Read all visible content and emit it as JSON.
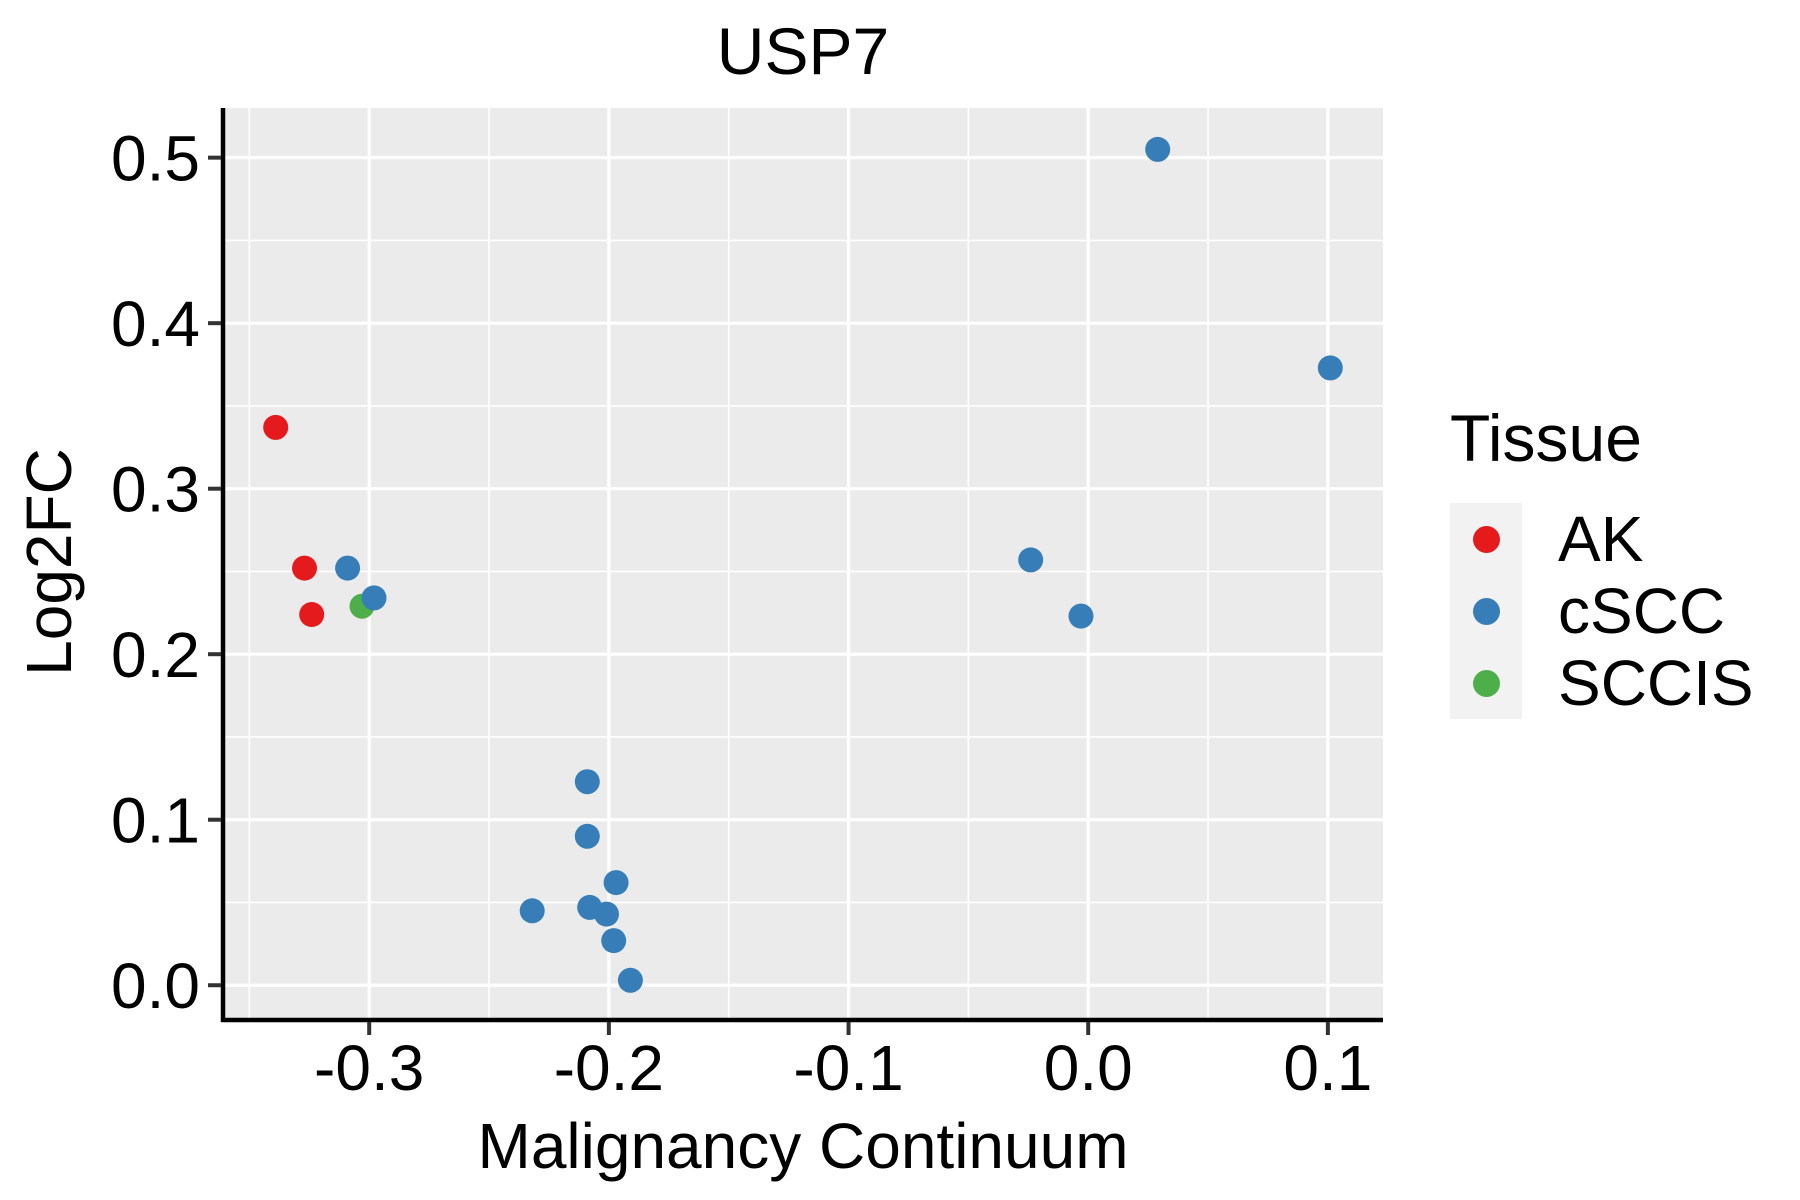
{
  "chart_data": {
    "type": "scatter",
    "title": "USP7",
    "xlabel": "Malignancy Continuum",
    "ylabel": "Log2FC",
    "xlim": [
      -0.361,
      0.123
    ],
    "ylim": [
      -0.021,
      0.53
    ],
    "x_ticks": {
      "values": [
        -0.3,
        -0.2,
        -0.1,
        0.0,
        0.1
      ],
      "labels": [
        "-0.3",
        "-0.2",
        "-0.1",
        "0.0",
        "0.1"
      ]
    },
    "y_ticks": {
      "values": [
        0.0,
        0.1,
        0.2,
        0.3,
        0.4,
        0.5
      ],
      "labels": [
        "0.0",
        "0.1",
        "0.2",
        "0.3",
        "0.4",
        "0.5"
      ]
    },
    "x_minor_ticks": [
      -0.35,
      -0.25,
      -0.15,
      -0.05,
      0.05
    ],
    "y_minor_ticks": [
      0.05,
      0.15,
      0.25,
      0.35,
      0.45
    ],
    "grid": "major and minor white gridlines on gray panel",
    "panel_bg": "#EBEBEB",
    "grid_color": "#FFFFFF",
    "axis_line_color": "#000000",
    "tick_color": "#333333",
    "point_radius": 12.5,
    "legend": {
      "title": "Tissue",
      "position": "right",
      "key_bg": "#F2F2F2",
      "entries": [
        {
          "label": "AK",
          "color": "#E41A1C"
        },
        {
          "label": "cSCC",
          "color": "#377EB8"
        },
        {
          "label": "SCCIS",
          "color": "#4DAF4A"
        }
      ]
    },
    "series": [
      {
        "name": "AK",
        "color": "#E41A1C",
        "points": [
          [
            -0.339,
            0.337
          ],
          [
            -0.327,
            0.252
          ],
          [
            -0.324,
            0.224
          ]
        ]
      },
      {
        "name": "SCCIS",
        "color": "#4DAF4A",
        "points": [
          [
            -0.303,
            0.229
          ]
        ]
      },
      {
        "name": "cSCC",
        "color": "#377EB8",
        "points": [
          [
            -0.309,
            0.252
          ],
          [
            -0.298,
            0.234
          ],
          [
            -0.209,
            0.123
          ],
          [
            -0.209,
            0.09
          ],
          [
            -0.197,
            0.062
          ],
          [
            -0.232,
            0.045
          ],
          [
            -0.208,
            0.047
          ],
          [
            -0.201,
            0.043
          ],
          [
            -0.198,
            0.027
          ],
          [
            -0.191,
            0.003
          ],
          [
            -0.024,
            0.257
          ],
          [
            -0.003,
            0.223
          ],
          [
            0.029,
            0.505
          ],
          [
            0.101,
            0.373
          ]
        ]
      }
    ]
  }
}
